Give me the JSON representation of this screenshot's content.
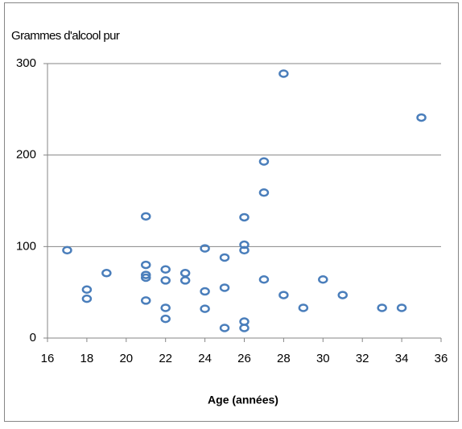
{
  "chart_data": {
    "type": "scatter",
    "y_axis_label": "Grammes d'alcool pur",
    "x_axis_label": "Age (années)",
    "x": [
      17,
      18,
      18,
      19,
      21,
      21,
      21,
      21,
      21,
      22,
      22,
      22,
      22,
      23,
      23,
      24,
      24,
      24,
      25,
      25,
      25,
      26,
      26,
      26,
      26,
      26,
      27,
      27,
      27,
      28,
      28,
      29,
      30,
      31,
      33,
      34,
      35
    ],
    "y": [
      96,
      53,
      43,
      71,
      133,
      80,
      69,
      66,
      41,
      75,
      63,
      33,
      21,
      71,
      63,
      98,
      51,
      32,
      88,
      55,
      11,
      132,
      102,
      96,
      18,
      11,
      193,
      159,
      64,
      289,
      47,
      33,
      64,
      47,
      33,
      33,
      241
    ],
    "color": "#4a7ebb",
    "xlim": [
      16,
      36
    ],
    "xticks": [
      16,
      18,
      20,
      22,
      24,
      26,
      28,
      30,
      32,
      34,
      36
    ],
    "ylim": [
      0,
      300
    ],
    "yticks": [
      0,
      100,
      200,
      300
    ],
    "grid": true
  }
}
